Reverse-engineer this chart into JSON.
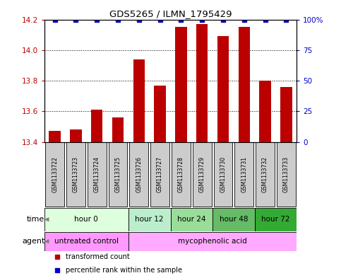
{
  "title": "GDS5265 / ILMN_1795429",
  "samples": [
    "GSM1133722",
    "GSM1133723",
    "GSM1133724",
    "GSM1133725",
    "GSM1133726",
    "GSM1133727",
    "GSM1133728",
    "GSM1133729",
    "GSM1133730",
    "GSM1133731",
    "GSM1133732",
    "GSM1133733"
  ],
  "bar_values": [
    13.47,
    13.48,
    13.61,
    13.56,
    13.94,
    13.77,
    14.15,
    14.17,
    14.09,
    14.15,
    13.8,
    13.76
  ],
  "bar_color": "#bb0000",
  "percentile_color": "#0000cc",
  "y_min": 13.4,
  "y_max": 14.2,
  "y_ticks": [
    13.4,
    13.6,
    13.8,
    14.0,
    14.2
  ],
  "y2_ticks": [
    0,
    25,
    50,
    75,
    100
  ],
  "y2_tick_labels": [
    "0",
    "25",
    "50",
    "75",
    "100%"
  ],
  "time_groups": [
    {
      "label": "hour 0",
      "start": 0,
      "end": 4,
      "color": "#ddffdd"
    },
    {
      "label": "hour 12",
      "start": 4,
      "end": 6,
      "color": "#bbeecc"
    },
    {
      "label": "hour 24",
      "start": 6,
      "end": 8,
      "color": "#99dd99"
    },
    {
      "label": "hour 48",
      "start": 8,
      "end": 10,
      "color": "#66bb66"
    },
    {
      "label": "hour 72",
      "start": 10,
      "end": 12,
      "color": "#33aa33"
    }
  ],
  "agent_groups": [
    {
      "label": "untreated control",
      "start": 0,
      "end": 4,
      "color": "#ff99ff"
    },
    {
      "label": "mycophenolic acid",
      "start": 4,
      "end": 12,
      "color": "#ffaaff"
    }
  ],
  "sample_box_color": "#cccccc",
  "legend_items": [
    {
      "color": "#bb0000",
      "label": "transformed count"
    },
    {
      "color": "#0000cc",
      "label": "percentile rank within the sample"
    }
  ],
  "bar_width": 0.55
}
